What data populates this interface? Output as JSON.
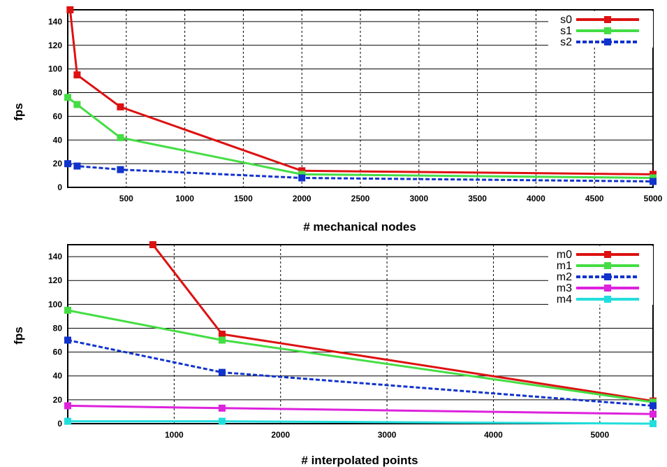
{
  "colors": {
    "s0": "#dd1111",
    "s1": "#44dd44",
    "s2": "#1133cc",
    "s3": "#dd22dd",
    "s4": "#22dddd"
  },
  "chart_data": [
    {
      "type": "line",
      "title": "",
      "xlabel": "# mechanical nodes",
      "ylabel": "fps",
      "xlim": [
        0,
        5000
      ],
      "ylim": [
        0,
        150
      ],
      "xticks": [
        500,
        1000,
        1500,
        2000,
        2500,
        3000,
        3500,
        4000,
        4500,
        5000
      ],
      "yticks": [
        0,
        20,
        40,
        60,
        80,
        100,
        120,
        140
      ],
      "grid": true,
      "legend": "top-right",
      "series": [
        {
          "name": "s0",
          "x": [
            20,
            80,
            450,
            2000,
            5000
          ],
          "y": [
            150,
            95,
            68,
            14,
            11
          ]
        },
        {
          "name": "s1",
          "x": [
            0,
            80,
            450,
            2000,
            5000
          ],
          "y": [
            76,
            70,
            42,
            11,
            8
          ]
        },
        {
          "name": "s2",
          "x": [
            0,
            80,
            450,
            2000,
            5000
          ],
          "y": [
            20,
            18,
            15,
            8,
            5
          ]
        }
      ]
    },
    {
      "type": "line",
      "title": "",
      "xlabel": "# interpolated points",
      "ylabel": "fps",
      "xlim": [
        0,
        5500
      ],
      "ylim": [
        0,
        150
      ],
      "xticks": [
        1000,
        2000,
        3000,
        4000,
        5000
      ],
      "yticks": [
        0,
        20,
        40,
        60,
        80,
        100,
        120,
        140
      ],
      "grid": true,
      "legend": "top-right",
      "series": [
        {
          "name": "m0",
          "x": [
            800,
            1450,
            5500
          ],
          "y": [
            150,
            75,
            19
          ]
        },
        {
          "name": "m1",
          "x": [
            0,
            1450,
            5500
          ],
          "y": [
            95,
            70,
            18
          ]
        },
        {
          "name": "m2",
          "x": [
            0,
            1450,
            5500
          ],
          "y": [
            70,
            43,
            15
          ]
        },
        {
          "name": "m3",
          "x": [
            0,
            1450,
            5500
          ],
          "y": [
            15,
            13,
            8
          ]
        },
        {
          "name": "m4",
          "x": [
            0,
            1450,
            5500
          ],
          "y": [
            2,
            2,
            0
          ]
        }
      ]
    }
  ]
}
